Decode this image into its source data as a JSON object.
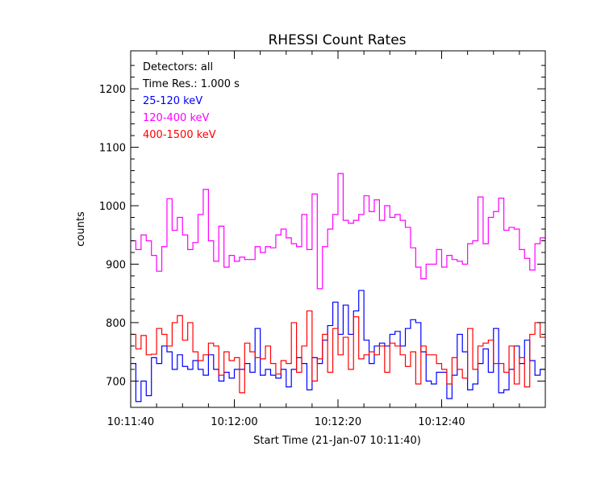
{
  "chart_data": {
    "type": "line",
    "title": "RHESSI Count Rates",
    "xlabel": "Start Time (21-Jan-07 10:11:40)",
    "ylabel": "counts",
    "xlim": [
      0,
      80
    ],
    "ylim": [
      655,
      1265
    ],
    "x_ticks": [
      {
        "value": 0,
        "label": "10:11:40"
      },
      {
        "value": 20,
        "label": "10:12:00"
      },
      {
        "value": 40,
        "label": "10:12:20"
      },
      {
        "value": 60,
        "label": "10:12:40"
      }
    ],
    "y_ticks": [
      {
        "value": 700,
        "label": "700"
      },
      {
        "value": 800,
        "label": "800"
      },
      {
        "value": 900,
        "label": "900"
      },
      {
        "value": 1000,
        "label": "1000"
      },
      {
        "value": 1100,
        "label": "1100"
      },
      {
        "value": 1200,
        "label": "1200"
      }
    ],
    "annotations": [
      "Detectors: all",
      "Time Res.: 1.000 s"
    ],
    "step": true,
    "x_step": 1,
    "series": [
      {
        "name": "25-120 keV",
        "color": "#0000ff",
        "values": [
          730,
          665,
          700,
          675,
          740,
          730,
          760,
          750,
          720,
          745,
          725,
          720,
          735,
          720,
          710,
          745,
          720,
          700,
          715,
          705,
          720,
          720,
          730,
          715,
          790,
          710,
          720,
          710,
          705,
          720,
          690,
          720,
          740,
          730,
          685,
          740,
          730,
          770,
          795,
          835,
          780,
          830,
          780,
          820,
          855,
          770,
          730,
          760,
          765,
          760,
          780,
          785,
          760,
          790,
          805,
          800,
          750,
          700,
          695,
          715,
          715,
          670,
          710,
          780,
          750,
          685,
          695,
          730,
          755,
          715,
          790,
          680,
          685,
          720,
          760,
          730,
          770,
          735,
          710,
          720
        ]
      },
      {
        "name": "120-400 keV",
        "color": "#ff00ff",
        "values": [
          940,
          925,
          950,
          940,
          915,
          888,
          930,
          1012,
          958,
          980,
          950,
          925,
          937,
          985,
          1028,
          940,
          905,
          965,
          895,
          915,
          905,
          912,
          908,
          908,
          930,
          920,
          930,
          928,
          950,
          960,
          945,
          935,
          930,
          985,
          925,
          1020,
          858,
          930,
          960,
          985,
          1055,
          975,
          970,
          975,
          985,
          1017,
          990,
          1010,
          975,
          1000,
          980,
          985,
          975,
          963,
          928,
          895,
          875,
          900,
          900,
          925,
          895,
          915,
          908,
          905,
          900,
          935,
          940,
          1015,
          935,
          980,
          990,
          1013,
          958,
          963,
          960,
          925,
          910,
          890,
          935,
          945
        ]
      },
      {
        "name": "400-1500 keV",
        "color": "#ff0000",
        "values": [
          780,
          755,
          778,
          745,
          746,
          790,
          780,
          760,
          800,
          812,
          770,
          800,
          750,
          735,
          745,
          765,
          760,
          710,
          750,
          735,
          740,
          680,
          765,
          750,
          740,
          738,
          760,
          730,
          712,
          735,
          730,
          800,
          715,
          760,
          820,
          700,
          738,
          780,
          715,
          790,
          745,
          775,
          720,
          810,
          738,
          745,
          750,
          745,
          760,
          715,
          765,
          760,
          745,
          725,
          750,
          695,
          760,
          745,
          745,
          730,
          720,
          695,
          740,
          720,
          705,
          790,
          720,
          760,
          765,
          770,
          730,
          730,
          715,
          760,
          695,
          740,
          690,
          780,
          800,
          775
        ]
      }
    ]
  }
}
